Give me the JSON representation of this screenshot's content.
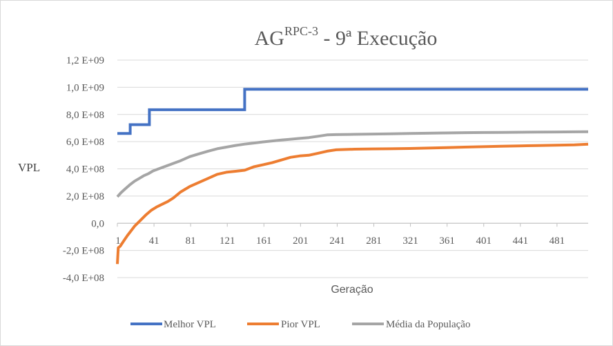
{
  "chart_data": {
    "type": "line",
    "title": {
      "main": "AG",
      "superscript": "RPC-3",
      "rest": " - 9ª Execução"
    },
    "xlabel": "Geração",
    "ylabel": "VPL",
    "xlim": [
      1,
      515
    ],
    "ylim": [
      -400000000,
      1200000000
    ],
    "x_ticks": [
      1,
      41,
      81,
      121,
      161,
      201,
      241,
      281,
      321,
      361,
      401,
      441,
      481
    ],
    "y_ticks": [
      {
        "value": 1200000000,
        "label": "1,2 E+09"
      },
      {
        "value": 1000000000,
        "label": "1,0 E+09"
      },
      {
        "value": 800000000,
        "label": "8,0 E+08"
      },
      {
        "value": 600000000,
        "label": "6,0 E+08"
      },
      {
        "value": 400000000,
        "label": "4,0 E+08"
      },
      {
        "value": 200000000,
        "label": "2,0 E+08"
      },
      {
        "value": 0,
        "label": "0,0"
      },
      {
        "value": -200000000,
        "label": "-2,0 E+08"
      },
      {
        "value": -400000000,
        "label": "-4,0 E+08"
      }
    ],
    "grid": true,
    "legend_position": "bottom",
    "series": [
      {
        "name": "Melhor VPL",
        "color": "#4472c4",
        "step": true,
        "x": [
          1,
          15,
          15,
          36,
          36,
          140,
          140,
          515
        ],
        "y": [
          660000000,
          660000000,
          725000000,
          725000000,
          835000000,
          835000000,
          985000000,
          985000000
        ]
      },
      {
        "name": "Pior VPL",
        "color": "#ed7d31",
        "step": false,
        "x": [
          1,
          2,
          4,
          8,
          12,
          16,
          20,
          26,
          32,
          38,
          44,
          50,
          56,
          62,
          70,
          80,
          90,
          100,
          110,
          120,
          130,
          140,
          150,
          160,
          170,
          180,
          190,
          200,
          210,
          220,
          230,
          240,
          260,
          280,
          300,
          320,
          340,
          360,
          380,
          400,
          420,
          440,
          460,
          480,
          500,
          515
        ],
        "y": [
          -300000000,
          -180000000,
          -170000000,
          -130000000,
          -90000000,
          -55000000,
          -20000000,
          20000000,
          60000000,
          95000000,
          120000000,
          140000000,
          160000000,
          185000000,
          230000000,
          270000000,
          300000000,
          330000000,
          360000000,
          375000000,
          382000000,
          390000000,
          415000000,
          430000000,
          445000000,
          465000000,
          485000000,
          495000000,
          500000000,
          515000000,
          530000000,
          540000000,
          545000000,
          547000000,
          548000000,
          550000000,
          553000000,
          556000000,
          560000000,
          563000000,
          566000000,
          569000000,
          571000000,
          574000000,
          577000000,
          582000000
        ]
      },
      {
        "name": "Média da População",
        "color": "#a5a5a5",
        "step": false,
        "x": [
          1,
          5,
          10,
          15,
          20,
          25,
          30,
          35,
          40,
          50,
          60,
          70,
          80,
          90,
          100,
          110,
          120,
          130,
          140,
          150,
          160,
          170,
          180,
          190,
          200,
          210,
          220,
          230,
          240,
          260,
          280,
          300,
          320,
          340,
          360,
          380,
          400,
          420,
          440,
          460,
          480,
          500,
          515
        ],
        "y": [
          195000000,
          225000000,
          255000000,
          285000000,
          310000000,
          330000000,
          350000000,
          365000000,
          385000000,
          410000000,
          435000000,
          460000000,
          490000000,
          510000000,
          530000000,
          548000000,
          560000000,
          572000000,
          582000000,
          590000000,
          598000000,
          605000000,
          612000000,
          618000000,
          624000000,
          630000000,
          640000000,
          650000000,
          652000000,
          654000000,
          656000000,
          658000000,
          660000000,
          662000000,
          664000000,
          666000000,
          667000000,
          668000000,
          669000000,
          670000000,
          671000000,
          672000000,
          673000000
        ]
      }
    ]
  }
}
